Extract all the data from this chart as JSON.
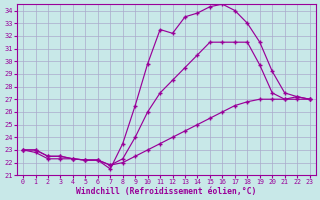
{
  "xlabel": "Windchill (Refroidissement éolien,°C)",
  "bg_color": "#c8e8e8",
  "line_color": "#990099",
  "grid_color": "#aaaacc",
  "xlim": [
    -0.5,
    23.5
  ],
  "ylim": [
    21,
    34.5
  ],
  "xticks": [
    0,
    1,
    2,
    3,
    4,
    5,
    6,
    7,
    8,
    9,
    10,
    11,
    12,
    13,
    14,
    15,
    16,
    17,
    18,
    19,
    20,
    21,
    22,
    23
  ],
  "yticks": [
    21,
    22,
    23,
    24,
    25,
    26,
    27,
    28,
    29,
    30,
    31,
    32,
    33,
    34
  ],
  "curve1_x": [
    0,
    1,
    2,
    3,
    4,
    5,
    6,
    7,
    8,
    9,
    10,
    11,
    12,
    13,
    14,
    15,
    16,
    17,
    18,
    19,
    20,
    21,
    22,
    23
  ],
  "curve1_y": [
    23.0,
    23.0,
    22.5,
    22.5,
    22.3,
    22.2,
    22.2,
    21.5,
    23.5,
    26.5,
    29.8,
    32.5,
    32.2,
    33.5,
    33.8,
    34.3,
    34.5,
    34.0,
    33.0,
    31.5,
    29.2,
    27.5,
    27.2,
    27.0
  ],
  "curve2_x": [
    0,
    1,
    2,
    3,
    4,
    5,
    6,
    7,
    8,
    9,
    10,
    11,
    12,
    13,
    14,
    15,
    16,
    17,
    18,
    19,
    20,
    21,
    22,
    23
  ],
  "curve2_y": [
    23.0,
    23.0,
    22.5,
    22.5,
    22.3,
    22.2,
    22.2,
    21.8,
    22.3,
    24.0,
    26.0,
    27.5,
    28.5,
    29.5,
    30.5,
    31.5,
    31.5,
    31.5,
    31.5,
    29.7,
    27.5,
    27.0,
    27.0,
    27.0
  ],
  "curve3_x": [
    0,
    1,
    2,
    3,
    4,
    5,
    6,
    7,
    8,
    9,
    10,
    11,
    12,
    13,
    14,
    15,
    16,
    17,
    18,
    19,
    20,
    21,
    22,
    23
  ],
  "curve3_y": [
    23.0,
    22.8,
    22.3,
    22.3,
    22.3,
    22.2,
    22.2,
    21.8,
    22.0,
    22.5,
    23.0,
    23.5,
    24.0,
    24.5,
    25.0,
    25.5,
    26.0,
    26.5,
    26.8,
    27.0,
    27.0,
    27.0,
    27.2,
    27.0
  ]
}
